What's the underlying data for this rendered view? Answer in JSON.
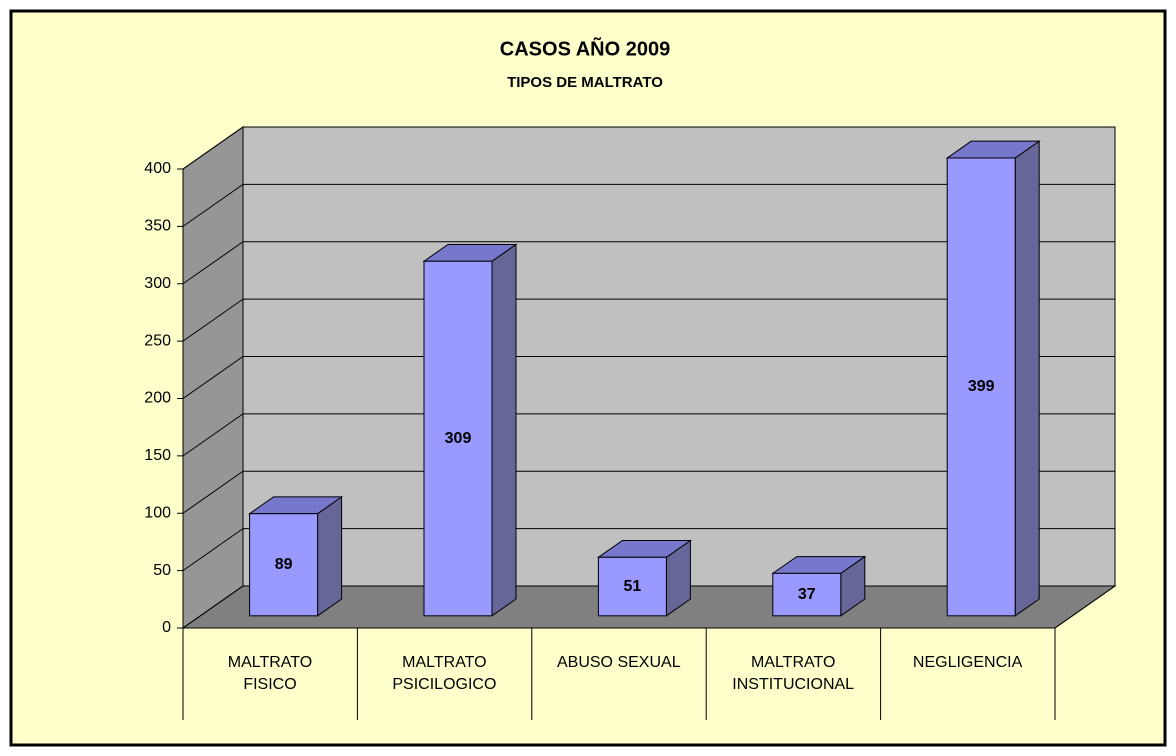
{
  "chart_data": {
    "type": "bar3d",
    "title": "CASOS AÑO 2009",
    "subtitle": "TIPOS DE MALTRATO",
    "categories": [
      "MALTRATO\nFISICO",
      "MALTRATO\nPSICILOGICO",
      "ABUSO SEXUAL",
      "MALTRATO\nINSTITUCIONAL",
      "NEGLIGENCIA"
    ],
    "values": [
      89,
      309,
      51,
      37,
      399
    ],
    "color": "#9999ff",
    "ylim": [
      0,
      400
    ],
    "yticks": [
      0,
      50,
      100,
      150,
      200,
      250,
      300,
      350,
      400
    ],
    "grid": true
  }
}
